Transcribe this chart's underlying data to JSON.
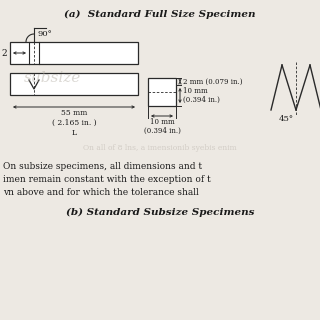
{
  "title_a": "(a)  Standard Full Size Specimen",
  "title_b": "(b) Standard Subsize Specimens",
  "body_line1": "On subsize specimens, all dimensions and t",
  "body_line2": "imen remain constant with the exception of t",
  "body_line3": "vn above and for which the tolerance shall",
  "bg_color": "#ede9e3",
  "text_color": "#1a1a1a",
  "line_color": "#2a2a2a",
  "dim_label_top": "2 mm (0.079 in.)",
  "dim_label_h": "10 mm\n(0.394 in.)",
  "dim_label_w": "10 mm\n(0.394 in.)",
  "dim_label_l": "55 mm\n( 2.165 in. )\nL",
  "label_45": "45°",
  "label_90": "90°",
  "label_2": "2",
  "watermark_text": "subsize",
  "watermark_color": "#b0aaa0"
}
